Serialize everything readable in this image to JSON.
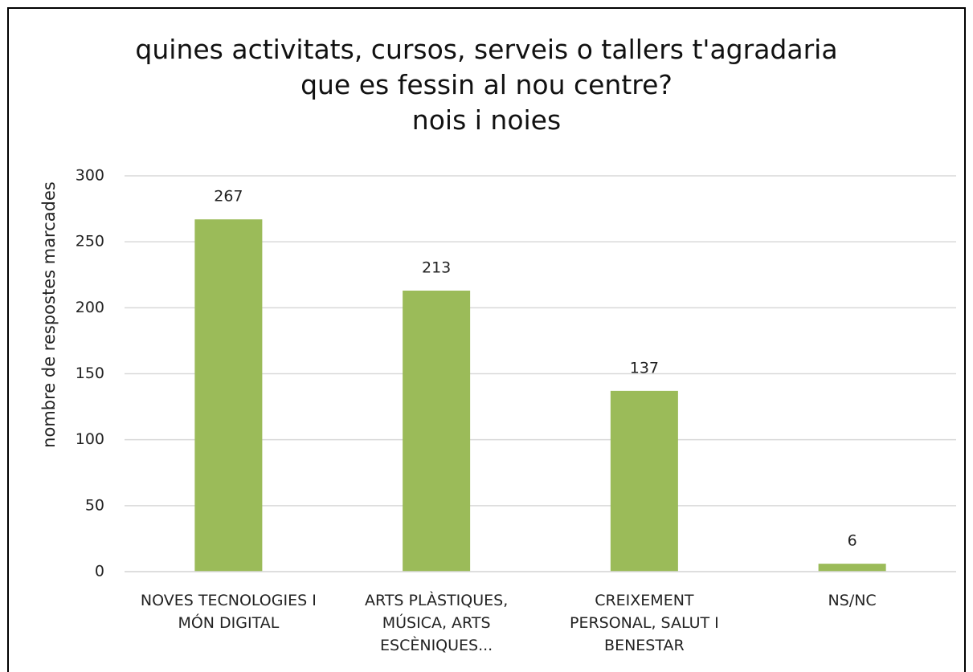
{
  "chart_data": {
    "type": "bar",
    "title": "quines activitats, cursos, serveis o tallers t'agradaria\nque es fessin al nou centre?",
    "subtitle": "nois i noies",
    "y_label": "nombre de respostes marcades",
    "categories": [
      "NOVES TECNOLOGIES I MÓN DIGITAL",
      "ARTS PLÀSTIQUES, MÚSICA, ARTS ESCÈNIQUES...",
      "CREIXEMENT PERSONAL, SALUT I BENESTAR",
      "NS/NC"
    ],
    "values": [
      267,
      213,
      137,
      6
    ],
    "color": "#9bbb59",
    "ylim": [
      0,
      300
    ],
    "yticks": [
      0,
      50,
      100,
      150,
      200,
      250,
      300
    ],
    "grid": true
  }
}
